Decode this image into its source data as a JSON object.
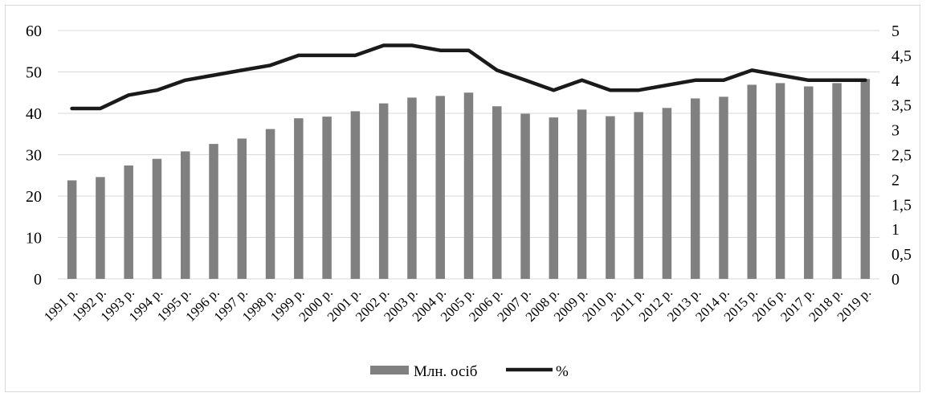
{
  "chart_data": {
    "type": "bar",
    "title": "",
    "categories": [
      "1991 р.",
      "1992 р.",
      "1993 р.",
      "1994 р.",
      "1995 р.",
      "1996 р.",
      "1997 р.",
      "1998 р.",
      "1999 р.",
      "2000 р.",
      "2001 р.",
      "2002 р.",
      "2003 р.",
      "2004 р.",
      "2005 р.",
      "2006 р.",
      "2007 р.",
      "2008 р.",
      "2009 р.",
      "2010 р.",
      "2011 р.",
      "2012 р.",
      "2013 р.",
      "2014 р.",
      "2015 р.",
      "2016 р.",
      "2017 р.",
      "2018 р.",
      "2019 р."
    ],
    "series": [
      {
        "name": "Млн. осіб",
        "kind": "bar",
        "axis": "left",
        "color": "#808080",
        "values": [
          23.8,
          24.6,
          27.4,
          29.0,
          30.8,
          32.6,
          33.9,
          36.2,
          38.8,
          39.2,
          40.5,
          42.4,
          43.8,
          44.2,
          45.0,
          41.7,
          39.9,
          39.0,
          40.9,
          39.3,
          40.3,
          41.3,
          43.6,
          44.0,
          46.9,
          47.3,
          46.5,
          47.3,
          48.3
        ]
      },
      {
        "name": "%",
        "kind": "line",
        "axis": "right",
        "color": "#1a1a1a",
        "values": [
          3.43,
          3.43,
          3.7,
          3.8,
          4.0,
          4.1,
          4.2,
          4.3,
          4.5,
          4.5,
          4.5,
          4.7,
          4.7,
          4.6,
          4.6,
          4.2,
          4.0,
          3.8,
          4.0,
          3.8,
          3.8,
          3.9,
          4.0,
          4.0,
          4.2,
          4.1,
          4.0,
          4.0,
          4.0
        ]
      }
    ],
    "y_left": {
      "min": 0,
      "max": 60,
      "ticks": [
        "0",
        "10",
        "20",
        "30",
        "40",
        "50",
        "60"
      ]
    },
    "y_right": {
      "min": 0,
      "max": 5,
      "ticks": [
        "0",
        "0,5",
        "1",
        "1,5",
        "2",
        "2,5",
        "3",
        "3,5",
        "4",
        "4,5",
        "5"
      ]
    },
    "xlabel": "",
    "ylabel": "",
    "grid": true,
    "legend": "bottom"
  }
}
